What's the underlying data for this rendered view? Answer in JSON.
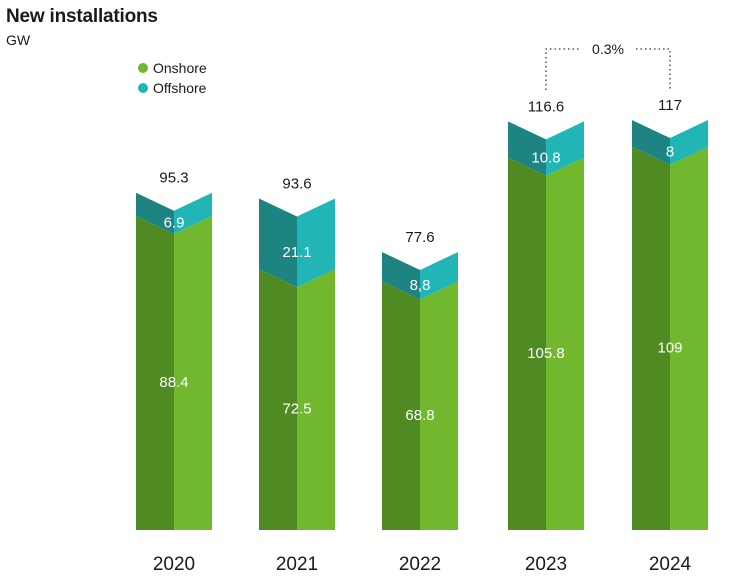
{
  "header": {
    "title": "New installations",
    "unit": "GW"
  },
  "legend": [
    {
      "label": "Onshore",
      "color": "#72b82f"
    },
    {
      "label": "Offshore",
      "color": "#22b5b5"
    }
  ],
  "chart_data": {
    "type": "bar",
    "stacked": true,
    "categories": [
      "2020",
      "2021",
      "2022",
      "2023",
      "2024"
    ],
    "series": [
      {
        "name": "Onshore",
        "values": [
          88.4,
          72.5,
          68.8,
          105.8,
          109
        ],
        "value_labels": [
          "88.4",
          "72.5",
          "68.8",
          "105.8",
          "109"
        ]
      },
      {
        "name": "Offshore",
        "values": [
          6.9,
          21.1,
          8.8,
          10.8,
          8
        ],
        "value_labels": [
          "6.9",
          "21.1",
          "8,8",
          "10.8",
          "8"
        ]
      }
    ],
    "totals": [
      95.3,
      93.6,
      77.6,
      116.6,
      117
    ],
    "total_labels": [
      "95.3",
      "93.6",
      "77.6",
      "116.6",
      "117"
    ],
    "annotation": {
      "from": "2023",
      "to": "2024",
      "label": "0.3%"
    },
    "colors": {
      "onshore_left": "#4f8a23",
      "onshore_right": "#72b82f",
      "offshore_left": "#1e8482",
      "offshore_right": "#22b5b5"
    },
    "ylim": [
      0,
      120
    ],
    "grid": false,
    "legend_position": "top-left"
  }
}
